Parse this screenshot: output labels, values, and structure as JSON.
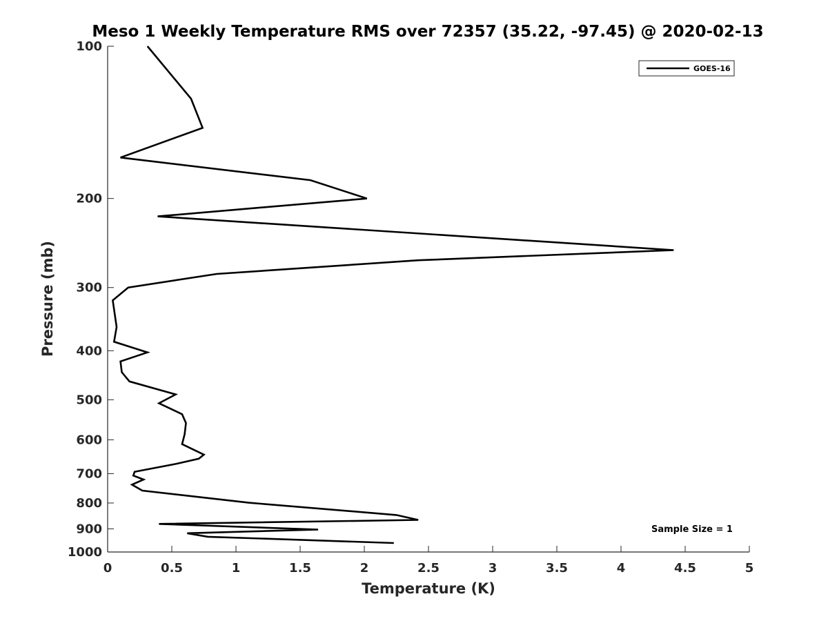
{
  "chart_data": {
    "type": "line",
    "title": "Meso 1 Weekly Temperature RMS over 72357 (35.22, -97.45) @ 2020-02-13",
    "xlabel": "Temperature (K)",
    "ylabel": "Pressure (mb)",
    "xlim": [
      0,
      5
    ],
    "ylim": [
      100,
      1000
    ],
    "y_scale": "log",
    "y_reversed": true,
    "x_ticks": [
      0,
      0.5,
      1,
      1.5,
      2,
      2.5,
      3,
      3.5,
      4,
      4.5,
      5
    ],
    "x_tick_labels": [
      "0",
      "0.5",
      "1",
      "1.5",
      "2",
      "2.5",
      "3",
      "3.5",
      "4",
      "4.5",
      "5"
    ],
    "y_ticks": [
      100,
      200,
      300,
      400,
      500,
      600,
      700,
      800,
      900,
      1000
    ],
    "y_tick_labels": [
      "100",
      "200",
      "300",
      "400",
      "500",
      "600",
      "700",
      "800",
      "900",
      "1000"
    ],
    "grid": false,
    "legend_position": "top-right",
    "annotation": "Sample Size = 1",
    "series": [
      {
        "name": "GOES-16",
        "color": "#000000",
        "points": [
          {
            "t": 0.31,
            "p": 100
          },
          {
            "t": 0.65,
            "p": 127
          },
          {
            "t": 0.74,
            "p": 145
          },
          {
            "t": 0.1,
            "p": 166
          },
          {
            "t": 1.58,
            "p": 184
          },
          {
            "t": 2.02,
            "p": 200
          },
          {
            "t": 0.39,
            "p": 217
          },
          {
            "t": 4.41,
            "p": 253
          },
          {
            "t": 2.42,
            "p": 265
          },
          {
            "t": 0.85,
            "p": 282
          },
          {
            "t": 0.16,
            "p": 300
          },
          {
            "t": 0.04,
            "p": 318
          },
          {
            "t": 0.07,
            "p": 359
          },
          {
            "t": 0.05,
            "p": 384
          },
          {
            "t": 0.31,
            "p": 403
          },
          {
            "t": 0.1,
            "p": 420
          },
          {
            "t": 0.11,
            "p": 441
          },
          {
            "t": 0.17,
            "p": 460
          },
          {
            "t": 0.53,
            "p": 488
          },
          {
            "t": 0.4,
            "p": 508
          },
          {
            "t": 0.58,
            "p": 534
          },
          {
            "t": 0.61,
            "p": 556
          },
          {
            "t": 0.6,
            "p": 585
          },
          {
            "t": 0.58,
            "p": 612
          },
          {
            "t": 0.75,
            "p": 642
          },
          {
            "t": 0.71,
            "p": 654
          },
          {
            "t": 0.54,
            "p": 669
          },
          {
            "t": 0.21,
            "p": 694
          },
          {
            "t": 0.2,
            "p": 706
          },
          {
            "t": 0.28,
            "p": 719
          },
          {
            "t": 0.19,
            "p": 736
          },
          {
            "t": 0.27,
            "p": 756
          },
          {
            "t": 1.1,
            "p": 799
          },
          {
            "t": 2.25,
            "p": 845
          },
          {
            "t": 2.42,
            "p": 864
          },
          {
            "t": 0.4,
            "p": 880
          },
          {
            "t": 1.64,
            "p": 903
          },
          {
            "t": 0.62,
            "p": 918
          },
          {
            "t": 0.78,
            "p": 933
          },
          {
            "t": 2.23,
            "p": 960
          }
        ]
      }
    ]
  }
}
